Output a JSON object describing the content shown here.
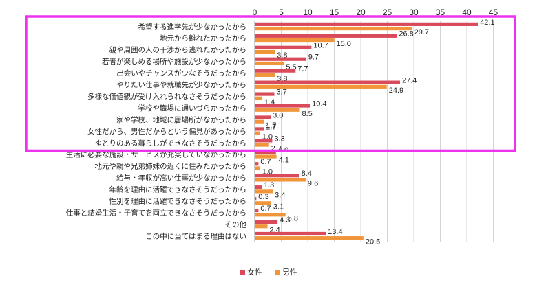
{
  "chart_data": {
    "type": "bar",
    "orientation": "horizontal",
    "xlim": [
      0,
      45
    ],
    "xticks": [
      0,
      5,
      10,
      15,
      20,
      25,
      30,
      35,
      40,
      45
    ],
    "grid": true,
    "legend_position": "bottom",
    "categories": [
      "希望する進学先が少なかったから",
      "地元から離れたかったから",
      "親や周囲の人の干渉から逃れたかったから",
      "若者が楽しめる場所や施設が少なかったから",
      "出会いやチャンスが少なそうだったから",
      "やりたい仕事や就職先が少なかったから",
      "多様な価値観が受け入れられなさそうだったから",
      "学校や職場に通いづらかったから",
      "家や学校、地域に居場所がなかったから",
      "女性だから、男性だからという偏見があったから",
      "ゆとりのある暮らしができなさそうだったから",
      "生活に必要な施設・サービスが充実していなかったから",
      "地元や親や兄弟姉妹の近くに住みたかったから",
      "給与・年収が高い仕事が少なかったから",
      "年齢を理由に活躍できなさそうだったから",
      "性別を理由に活躍できなさそうだったから",
      "仕事と結婚生活・子育てを両立できなさそうだったから",
      "その他",
      "この中に当てはまる理由はない"
    ],
    "series": [
      {
        "name": "女性",
        "color": "#d94b5b",
        "values": [
          42.1,
          26.8,
          10.7,
          9.7,
          7.7,
          27.4,
          3.7,
          10.4,
          3.0,
          1.7,
          3.3,
          4.0,
          0.7,
          8.4,
          1.3,
          0.3,
          0.7,
          4.3,
          13.4
        ]
      },
      {
        "name": "男性",
        "color": "#f0953a",
        "values": [
          29.7,
          15.0,
          3.8,
          5.5,
          3.8,
          24.9,
          1.4,
          8.5,
          1.7,
          1.0,
          2.7,
          4.1,
          1.0,
          9.6,
          3.4,
          3.1,
          5.8,
          2.4,
          20.5
        ]
      }
    ],
    "highlight_color": "#ee33ee",
    "highlight_categories": [
      0,
      10
    ]
  }
}
